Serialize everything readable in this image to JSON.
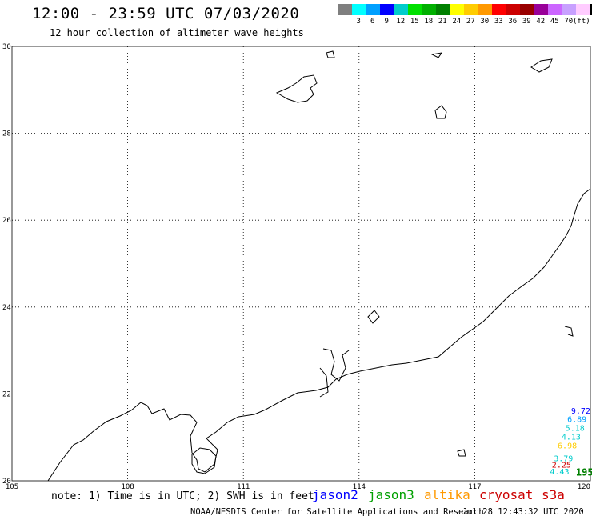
{
  "header": {
    "title": "12:00 - 23:59 UTC 07/03/2020",
    "subtitle": "12 hour collection of altimeter wave heights"
  },
  "colorbar": {
    "colors": [
      "#7f7f7f",
      "#00ffff",
      "#00a0ff",
      "#0000ff",
      "#00cccc",
      "#00e000",
      "#00b000",
      "#008000",
      "#ffff00",
      "#ffcc00",
      "#ff9900",
      "#ff0000",
      "#cc0000",
      "#990000",
      "#990099",
      "#cc66ff",
      "#c8a0ff",
      "#ffccff",
      "#000000"
    ],
    "labels": [
      "3",
      "6",
      "9",
      "12",
      "15",
      "18",
      "21",
      "24",
      "27",
      "30",
      "33",
      "36",
      "39",
      "42",
      "45",
      "70"
    ],
    "unit": "(ft)"
  },
  "map": {
    "lat_labels": [
      "30",
      "28",
      "26",
      "24",
      "22",
      "20"
    ],
    "lon_labels": [
      "105",
      "108",
      "111",
      "114",
      "117",
      "120"
    ],
    "lat_range": [
      20,
      30
    ],
    "lon_range": [
      105,
      120
    ],
    "grid": true
  },
  "observations": [
    {
      "label": "9.72",
      "color": "#0000ff",
      "lat": 21.55,
      "lon": 119.75
    },
    {
      "label": "5.18",
      "color": "#00cccc",
      "lat": 21.15,
      "lon": 119.6
    },
    {
      "label": "4.13",
      "color": "#00cccc",
      "lat": 20.95,
      "lon": 119.5
    },
    {
      "label": "6.89",
      "color": "#00a0ff",
      "lat": 21.35,
      "lon": 119.65
    },
    {
      "label": "6.98",
      "color": "#ffcc00",
      "lat": 20.75,
      "lon": 119.4
    },
    {
      "label": "3.79",
      "color": "#00cccc",
      "lat": 20.45,
      "lon": 119.3
    },
    {
      "label": "2.25",
      "color": "#cc0000",
      "lat": 20.3,
      "lon": 119.25
    },
    {
      "label": "4.43",
      "color": "#00cccc",
      "lat": 20.15,
      "lon": 119.2
    },
    {
      "label": "195",
      "color": "#008000",
      "lat": 20.12,
      "lon": 119.85
    }
  ],
  "footer": {
    "note": "note: 1) Time is in UTC; 2) SWH is in feet",
    "satellites": [
      {
        "name": "jason2",
        "color": "#0000ff"
      },
      {
        "name": "jason3",
        "color": "#00a000"
      },
      {
        "name": "altika",
        "color": "#ff9900"
      },
      {
        "name": "cryosat",
        "color": "#cc0000"
      },
      {
        "name": "s3a",
        "color": "#cc0000"
      }
    ],
    "credit": "NOAA/NESDIS Center for Satellite Applications and Research",
    "timestamp": "Jul 28 12:43:32 UTC 2020"
  }
}
